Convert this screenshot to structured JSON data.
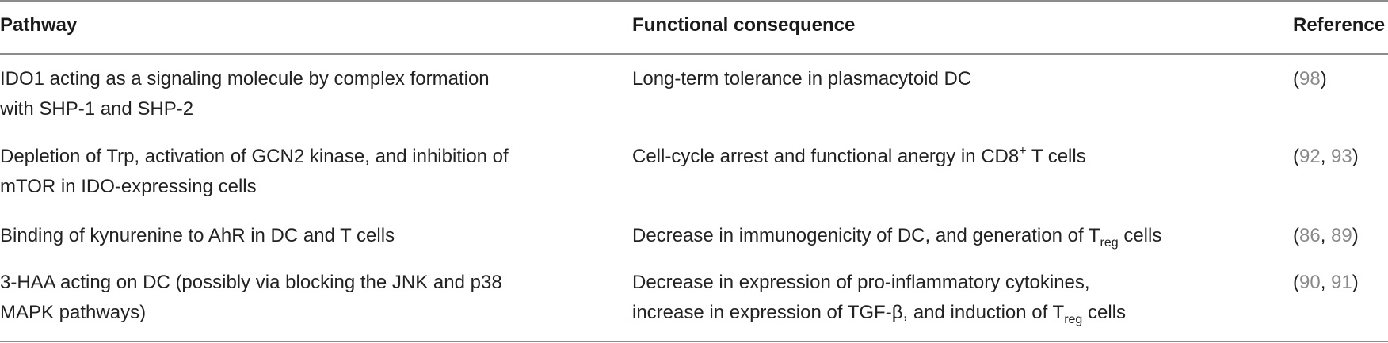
{
  "headers": {
    "pathway": "Pathway",
    "consequence": "Functional consequence",
    "reference": "Reference"
  },
  "rows": [
    {
      "pathway_line1": "IDO1 acting as a signaling molecule by complex formation",
      "pathway_line2": "with SHP-1 and SHP-2",
      "consequence_line1": "Long-term tolerance in plasmacytoid DC",
      "ref_open": "(",
      "ref1": "98",
      "ref_close": ")"
    },
    {
      "pathway_line1": "Depletion of Trp, activation of GCN2 kinase, and inhibition of",
      "pathway_line2": "mTOR in IDO-expressing cells",
      "consequence_pre": "Cell-cycle arrest and functional anergy in CD8",
      "consequence_sup": "+",
      "consequence_post": " T cells",
      "ref_open": "(",
      "ref1": "92",
      "ref_sep": ", ",
      "ref2": "93",
      "ref_close": ")"
    },
    {
      "pathway_line1": "Binding of kynurenine to AhR in DC and T cells",
      "consequence_pre": "Decrease in immunogenicity of DC, and generation of T",
      "consequence_sub": "reg",
      "consequence_post": " cells",
      "ref_open": "(",
      "ref1": "86",
      "ref_sep": ", ",
      "ref2": "89",
      "ref_close": ")"
    },
    {
      "pathway_line1": "3-HAA acting on DC (possibly via blocking the JNK and p38",
      "pathway_line2": "MAPK pathways)",
      "consequence_line1": "Decrease in expression of pro-inflammatory cytokines,",
      "consequence_pre": "increase in expression of TGF-β, and induction of T",
      "consequence_sub": "reg",
      "consequence_post": " cells",
      "ref_open": "(",
      "ref1": "90",
      "ref_sep": ", ",
      "ref2": "91",
      "ref_close": ")"
    }
  ]
}
